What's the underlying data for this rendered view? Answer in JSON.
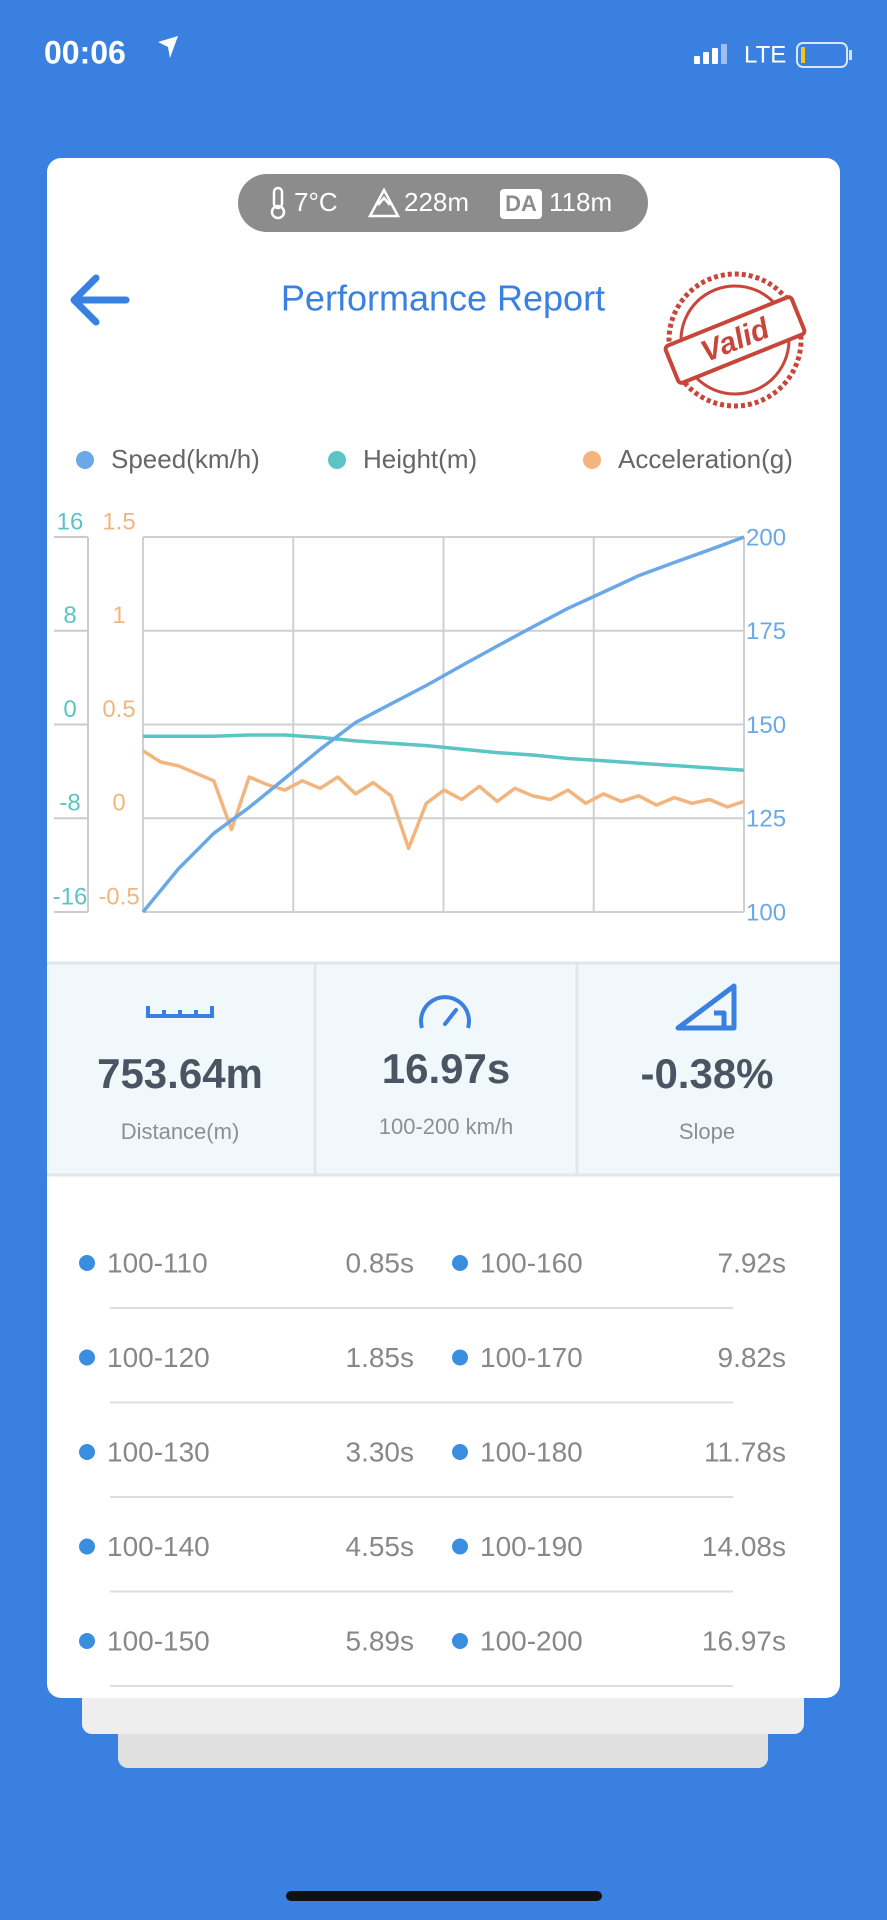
{
  "status": {
    "time": "00:06",
    "network": "LTE"
  },
  "conditions": {
    "temperature": "7°C",
    "altitude": "228m",
    "da_badge": "DA",
    "density_altitude": "118m"
  },
  "header": {
    "title": "Performance Report",
    "stamp": "Valid"
  },
  "chart_data": {
    "type": "line",
    "grid": true,
    "xlim": [
      0,
      16.97
    ],
    "ylim": [
      100,
      200
    ],
    "yticks": [
      100,
      125,
      150,
      175,
      200
    ],
    "y2lim": [
      -16,
      16
    ],
    "y2ticks": [
      -16,
      -8,
      0,
      8,
      16
    ],
    "y3lim": [
      -0.5,
      1.5
    ],
    "y3ticks": [
      -0.5,
      0,
      0.5,
      1,
      1.5
    ],
    "series": [
      {
        "name": "Speed(km/h)",
        "color": "#6aa8e8",
        "axis": "y",
        "x": [
          0,
          1,
          2,
          3,
          4,
          5,
          6,
          7,
          8,
          9,
          10,
          11,
          12,
          13,
          14,
          15,
          16,
          16.97
        ],
        "values": [
          100,
          111.5,
          121.0,
          127.9,
          135.6,
          143.4,
          150.5,
          155.5,
          160.4,
          165.7,
          170.9,
          176.0,
          181.0,
          185.3,
          189.7,
          193.2,
          196.6,
          200
        ]
      },
      {
        "name": "Height(m)",
        "color": "#5bc4c4",
        "axis": "y2",
        "x": [
          0,
          1,
          2,
          3,
          4,
          5,
          6,
          7,
          8,
          9,
          10,
          11,
          12,
          13,
          14,
          15,
          16,
          16.97
        ],
        "values": [
          -1.0,
          -1.0,
          -1.0,
          -0.9,
          -0.9,
          -1.1,
          -1.4,
          -1.6,
          -1.8,
          -2.1,
          -2.4,
          -2.6,
          -2.9,
          -3.1,
          -3.3,
          -3.5,
          -3.7,
          -3.9
        ]
      },
      {
        "name": "Acceleration(g)",
        "color": "#f3b57e",
        "axis": "y3",
        "x": [
          0,
          0.5,
          1,
          1.5,
          2,
          2.5,
          3,
          3.5,
          4,
          4.5,
          5,
          5.5,
          6,
          6.5,
          7,
          7.5,
          8,
          8.5,
          9,
          9.5,
          10,
          10.5,
          11,
          11.5,
          12,
          12.5,
          13,
          13.5,
          14,
          14.5,
          15,
          15.5,
          16,
          16.5,
          16.97
        ],
        "values": [
          0.36,
          0.3,
          0.28,
          0.24,
          0.2,
          -0.06,
          0.22,
          0.18,
          0.15,
          0.2,
          0.16,
          0.22,
          0.13,
          0.19,
          0.12,
          -0.16,
          0.08,
          0.15,
          0.1,
          0.17,
          0.09,
          0.16,
          0.12,
          0.1,
          0.15,
          0.08,
          0.13,
          0.09,
          0.12,
          0.07,
          0.11,
          0.08,
          0.1,
          0.06,
          0.09
        ]
      }
    ]
  },
  "stats": [
    {
      "value": "753.64m",
      "label": "Distance(m)"
    },
    {
      "value": "16.97s",
      "label": "100-200 km/h"
    },
    {
      "value": "-0.38%",
      "label": "Slope"
    }
  ],
  "splits": [
    {
      "range": "100-110",
      "time": "0.85s"
    },
    {
      "range": "100-120",
      "time": "1.85s"
    },
    {
      "range": "100-130",
      "time": "3.30s"
    },
    {
      "range": "100-140",
      "time": "4.55s"
    },
    {
      "range": "100-150",
      "time": "5.89s"
    },
    {
      "range": "100-160",
      "time": "7.92s"
    },
    {
      "range": "100-170",
      "time": "9.82s"
    },
    {
      "range": "100-180",
      "time": "11.78s"
    },
    {
      "range": "100-190",
      "time": "14.08s"
    },
    {
      "range": "100-200",
      "time": "16.97s"
    }
  ]
}
